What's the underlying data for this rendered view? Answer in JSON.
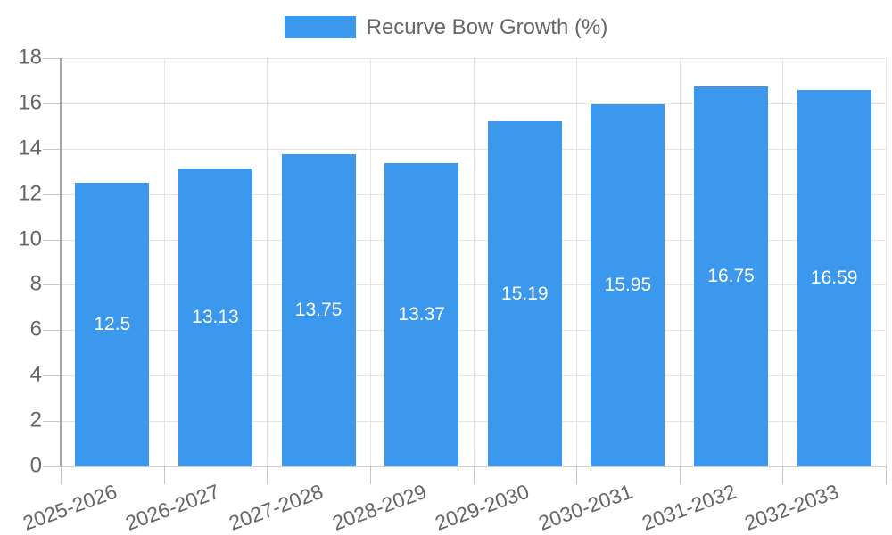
{
  "chart_data": {
    "type": "bar",
    "title": "",
    "legend": {
      "label": "Recurve Bow Growth (%)",
      "position": "top"
    },
    "categories": [
      "2025-2026",
      "2026-2027",
      "2027-2028",
      "2028-2029",
      "2029-2030",
      "2030-2031",
      "2031-2032",
      "2032-2033"
    ],
    "series": [
      {
        "name": "Recurve Bow Growth (%)",
        "values": [
          12.5,
          13.13,
          13.75,
          13.37,
          15.19,
          15.95,
          16.75,
          16.59
        ]
      }
    ],
    "value_labels": [
      "12.5",
      "13.13",
      "13.75",
      "13.37",
      "15.19",
      "15.95",
      "16.75",
      "16.59"
    ],
    "xlabel": "",
    "ylabel": "",
    "ylim": [
      0,
      18
    ],
    "ytick_step": 2,
    "yticks": [
      0,
      2,
      4,
      6,
      8,
      10,
      12,
      14,
      16,
      18
    ],
    "grid": true,
    "legend_position": "top",
    "colors": {
      "bar": "#3B98EC",
      "grid": "#e5e5e5",
      "zero_grid": "#cfcfcf",
      "tick": "#c4c4c4",
      "axis": "#a3a3a3",
      "label_text": "#666666",
      "datalabel_text": "#ffffff",
      "background": "#ffffff"
    }
  }
}
